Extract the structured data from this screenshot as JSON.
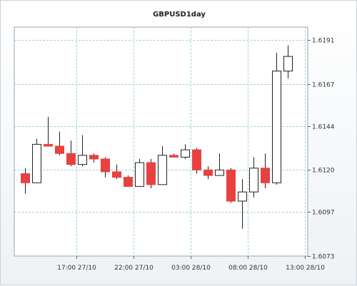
{
  "chart_data": {
    "type": "candlestick",
    "title": "GBPUSD1day",
    "xlabel": "",
    "ylabel": "",
    "ylim": [
      1.6073,
      1.6198
    ],
    "grid": true,
    "y_ticks": [
      1.6073,
      1.6097,
      1.612,
      1.6144,
      1.6167,
      1.6191
    ],
    "y_tick_labels": [
      "1.6073",
      "1.6097",
      "1.6120",
      "1.6144",
      "1.6167",
      "1.6191"
    ],
    "x_tick_labels": [
      "17:00 27/10",
      "22:00 27/10",
      "03:00 28/10",
      "08:00 28/10",
      "13:00 28/10"
    ],
    "x_tick_after_candle": [
      4,
      9,
      14,
      19,
      24
    ],
    "bull_color": "#ffffff",
    "bear_color": "#e8413f",
    "candles": [
      {
        "o": 1.6118,
        "h": 1.6121,
        "l": 1.6107,
        "c": 1.6113
      },
      {
        "o": 1.6113,
        "h": 1.6137,
        "l": 1.6113,
        "c": 1.6134
      },
      {
        "o": 1.6134,
        "h": 1.6149,
        "l": 1.6133,
        "c": 1.6133
      },
      {
        "o": 1.6133,
        "h": 1.6141,
        "l": 1.6128,
        "c": 1.6129
      },
      {
        "o": 1.6129,
        "h": 1.6136,
        "l": 1.6122,
        "c": 1.6123
      },
      {
        "o": 1.6123,
        "h": 1.6139,
        "l": 1.6122,
        "c": 1.6128
      },
      {
        "o": 1.6128,
        "h": 1.6129,
        "l": 1.6124,
        "c": 1.6126
      },
      {
        "o": 1.6126,
        "h": 1.6127,
        "l": 1.6116,
        "c": 1.6119
      },
      {
        "o": 1.6119,
        "h": 1.6123,
        "l": 1.6115,
        "c": 1.6116
      },
      {
        "o": 1.6116,
        "h": 1.6117,
        "l": 1.6111,
        "c": 1.6111
      },
      {
        "o": 1.6111,
        "h": 1.6126,
        "l": 1.6111,
        "c": 1.6124
      },
      {
        "o": 1.6124,
        "h": 1.6126,
        "l": 1.611,
        "c": 1.6112
      },
      {
        "o": 1.6112,
        "h": 1.6133,
        "l": 1.6112,
        "c": 1.6128
      },
      {
        "o": 1.6128,
        "h": 1.6129,
        "l": 1.6127,
        "c": 1.6127
      },
      {
        "o": 1.6127,
        "h": 1.6134,
        "l": 1.6126,
        "c": 1.6131
      },
      {
        "o": 1.6131,
        "h": 1.6132,
        "l": 1.6118,
        "c": 1.612
      },
      {
        "o": 1.612,
        "h": 1.6122,
        "l": 1.6115,
        "c": 1.6117
      },
      {
        "o": 1.6117,
        "h": 1.6129,
        "l": 1.6117,
        "c": 1.612
      },
      {
        "o": 1.612,
        "h": 1.6121,
        "l": 1.6102,
        "c": 1.6103
      },
      {
        "o": 1.6103,
        "h": 1.6115,
        "l": 1.6088,
        "c": 1.6108
      },
      {
        "o": 1.6108,
        "h": 1.6127,
        "l": 1.6105,
        "c": 1.6121
      },
      {
        "o": 1.6121,
        "h": 1.6129,
        "l": 1.611,
        "c": 1.6113
      },
      {
        "o": 1.6113,
        "h": 1.6184,
        "l": 1.6112,
        "c": 1.6174
      },
      {
        "o": 1.6174,
        "h": 1.6188,
        "l": 1.617,
        "c": 1.6182
      }
    ]
  }
}
